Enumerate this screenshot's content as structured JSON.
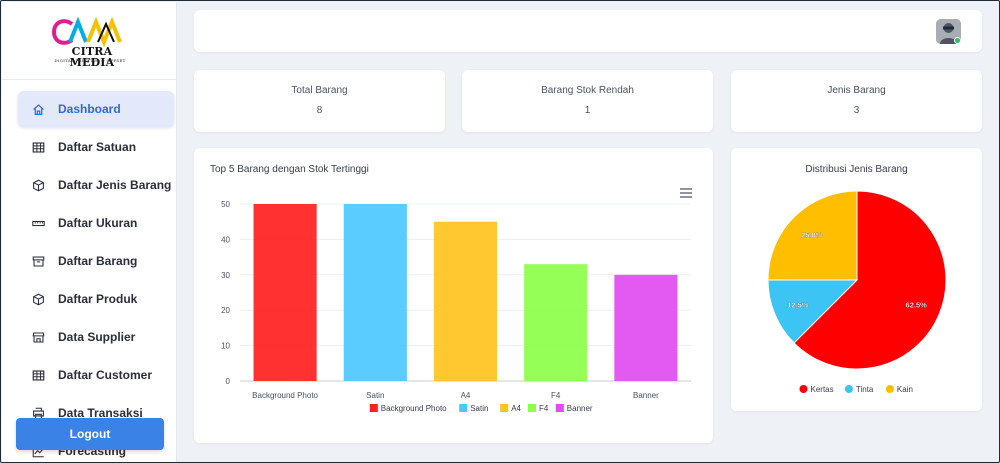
{
  "brand": {
    "name": "CITRA MEDIA",
    "tagline": "DIGITAL PRINTING & OFFSET"
  },
  "sidebar": {
    "items": [
      {
        "label": "Dashboard",
        "icon": "home-icon",
        "active": true
      },
      {
        "label": "Daftar Satuan",
        "icon": "table-icon"
      },
      {
        "label": "Daftar Jenis Barang",
        "icon": "box-icon"
      },
      {
        "label": "Daftar Ukuran",
        "icon": "ruler-icon"
      },
      {
        "label": "Daftar Barang",
        "icon": "archive-icon"
      },
      {
        "label": "Daftar Produk",
        "icon": "box-icon"
      },
      {
        "label": "Data Supplier",
        "icon": "store-icon"
      },
      {
        "label": "Daftar Customer",
        "icon": "table-icon"
      },
      {
        "label": "Data Transaksi",
        "icon": "printer-icon"
      },
      {
        "label": "Forecasting",
        "icon": "chart-line-icon"
      }
    ],
    "logout_label": "Logout"
  },
  "stats": {
    "total_barang": {
      "label": "Total Barang",
      "value": "8"
    },
    "stok_rendah": {
      "label": "Barang Stok Rendah",
      "value": "1"
    },
    "jenis_barang": {
      "label": "Jenis Barang",
      "value": "3"
    }
  },
  "colors": {
    "accent": "#3b82e6",
    "active_bg": "#e3e8fb",
    "status_online": "#22c55e"
  },
  "chart_data": [
    {
      "type": "bar",
      "title": "Top 5 Barang dengan Stok Tertinggi",
      "categories": [
        "Background Photo",
        "Satin",
        "A4",
        "F4",
        "Banner"
      ],
      "values": [
        50,
        50,
        45,
        33,
        30
      ],
      "colors": [
        "#ff1f1f",
        "#4cc8ff",
        "#ffc31f",
        "#8cff4a",
        "#e04cf0"
      ],
      "ylim": [
        0,
        50
      ],
      "yticks": [
        0,
        10,
        20,
        30,
        40,
        50
      ],
      "grid": true,
      "legend": "bottom",
      "legend_entries": [
        "Background Photo",
        "Satin",
        "A4",
        "F4",
        "Banner"
      ]
    },
    {
      "type": "pie",
      "title": "Distribusi Jenis Barang",
      "labels": [
        "Kertas",
        "Tinta",
        "Kain"
      ],
      "values": [
        62.5,
        12.5,
        25.0
      ],
      "value_labels": [
        "62.5%",
        "12.5%",
        "25.0%"
      ],
      "colors": [
        "#ff0000",
        "#3cc4f5",
        "#ffbe00"
      ],
      "legend": "bottom"
    }
  ]
}
